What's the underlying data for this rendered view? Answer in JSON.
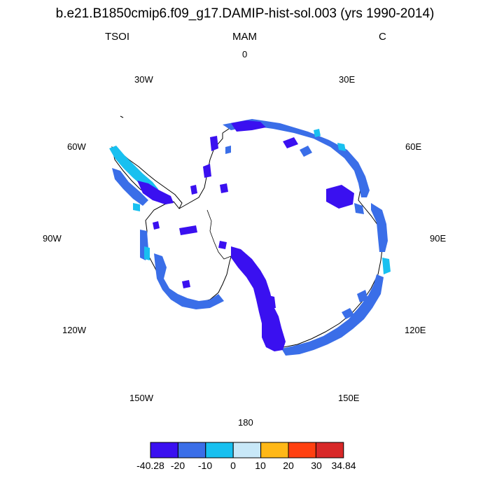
{
  "header": {
    "title": "b.e21.B1850cmip6.f09_g17.DAMIP-hist-sol.003 (yrs 1990-2014)",
    "variable": "TSOI",
    "season": "MAM",
    "units": "C"
  },
  "map": {
    "projection": "south-polar-stereographic",
    "longitude_labels": [
      "0",
      "30E",
      "60E",
      "90E",
      "120E",
      "150E",
      "180",
      "150W",
      "120W",
      "90W",
      "60W",
      "30W"
    ]
  },
  "colorbar": {
    "labels": [
      "-40.28",
      "-20",
      "-10",
      "0",
      "10",
      "20",
      "30",
      "34.84"
    ],
    "colors": [
      "#3a10f0",
      "#3a6ee8",
      "#18c0f0",
      "#c8e8f8",
      "#ffb818",
      "#ff4010",
      "#d82828"
    ]
  }
}
